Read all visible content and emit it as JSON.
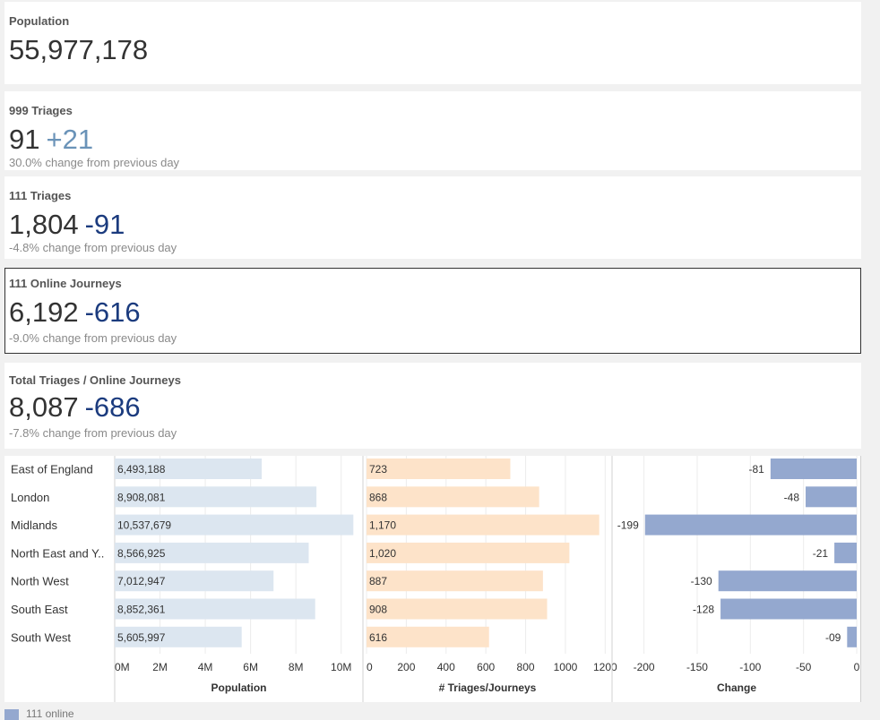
{
  "kpis": {
    "population": {
      "title": "Population",
      "value": "55,977,178"
    },
    "triage_999": {
      "title": "999 Triages",
      "value": "91",
      "change": "+21",
      "change_color": "#6a93b8",
      "subtitle": "30.0% change from previous day"
    },
    "triage_111": {
      "title": "111 Triages",
      "value": "1,804",
      "change": "-91",
      "change_color": "#1b3b7e",
      "subtitle": "-4.8% change from previous day"
    },
    "online_111": {
      "title": "111 Online Journeys",
      "value": "6,192",
      "change": "-616",
      "change_color": "#1b3b7e",
      "subtitle": "-9.0% change from previous day"
    },
    "total": {
      "title": "Total Triages / Online Journeys",
      "value": "8,087",
      "change": "-686",
      "change_color": "#1b3b7e",
      "subtitle": "-7.8% change from previous day"
    }
  },
  "chart_data": [
    {
      "type": "bar",
      "orientation": "horizontal",
      "categories": [
        "East of England",
        "London",
        "Midlands",
        "North East and Y..",
        "North West",
        "South East",
        "South West"
      ],
      "values": [
        6493188,
        8908081,
        10537679,
        8566925,
        7012947,
        8852361,
        5605997
      ],
      "value_labels": [
        "6,493,188",
        "8,908,081",
        "10,537,679",
        "8,566,925",
        "7,012,947",
        "8,852,361",
        "5,605,997"
      ],
      "xlabel": "Population",
      "xlim": [
        0,
        11000000
      ],
      "ticks": [
        0,
        2000000,
        4000000,
        6000000,
        8000000,
        10000000
      ],
      "tick_labels": [
        "0M",
        "2M",
        "4M",
        "6M",
        "8M",
        "10M"
      ],
      "color": "#dce6f0",
      "grid": true
    },
    {
      "type": "bar",
      "orientation": "horizontal",
      "categories": [
        "East of England",
        "London",
        "Midlands",
        "North East and Y..",
        "North West",
        "South East",
        "South West"
      ],
      "values": [
        723,
        868,
        1170,
        1020,
        887,
        908,
        616
      ],
      "value_labels": [
        "723",
        "868",
        "1,170",
        "1,020",
        "887",
        "908",
        "616"
      ],
      "xlabel": "# Triages/Journeys",
      "xlim": [
        0,
        1230
      ],
      "ticks": [
        0,
        200,
        400,
        600,
        800,
        1000,
        1200
      ],
      "tick_labels": [
        "0",
        "200",
        "400",
        "600",
        "800",
        "1000",
        "1200"
      ],
      "color": "#fde3c9",
      "grid": true
    },
    {
      "type": "bar",
      "orientation": "horizontal",
      "categories": [
        "East of England",
        "London",
        "Midlands",
        "North East and Y..",
        "North West",
        "South East",
        "South West"
      ],
      "values": [
        -81,
        -48,
        -199,
        -21,
        -130,
        -128,
        -9
      ],
      "value_labels": [
        "-81",
        "-48",
        "-199",
        "-21",
        "-130",
        "-128",
        "-09"
      ],
      "xlabel": "Change",
      "xlim": [
        -230,
        0
      ],
      "ticks": [
        -200,
        -150,
        -100,
        -50,
        0
      ],
      "tick_labels": [
        "-200",
        "-150",
        "-100",
        "-50",
        "0"
      ],
      "color": "#94a8cf",
      "grid": true
    }
  ],
  "legend": {
    "label": "111 online"
  }
}
